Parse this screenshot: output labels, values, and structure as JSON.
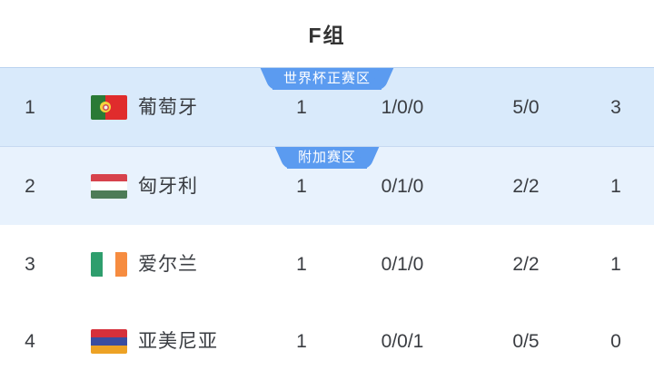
{
  "title": "F组",
  "colors": {
    "badge_blue": "#5b9bf0",
    "row_tint_primary": "#d9eafb",
    "row_tint_secondary": "#e8f2fd",
    "row_plain": "#ffffff",
    "text_dark": "#3a3d42",
    "title_color": "#333333"
  },
  "table": {
    "rows": [
      {
        "rank": "1",
        "team": "葡萄牙",
        "badge": "世界杯正赛区",
        "bg": "#d9eafb",
        "tinted": true,
        "flag": {
          "country": "portugal",
          "direction": "vertical",
          "stripes": [
            {
              "color": "#2a7a36",
              "size": 40
            },
            {
              "color": "#e02c2c",
              "size": 60
            }
          ],
          "emblem": {
            "ring": "#f5d33c",
            "center": "#f2efe9"
          }
        },
        "played": "1",
        "wdl": "1/0/0",
        "goals": "5/0",
        "points": "3"
      },
      {
        "rank": "2",
        "team": "匈牙利",
        "badge": "附加赛区",
        "bg": "#e8f2fd",
        "tinted": true,
        "flag": {
          "country": "hungary",
          "direction": "horizontal",
          "stripes": [
            {
              "color": "#d7424c",
              "size": 33
            },
            {
              "color": "#ffffff",
              "size": 34
            },
            {
              "color": "#4d7c57",
              "size": 33
            }
          ]
        },
        "played": "1",
        "wdl": "0/1/0",
        "goals": "2/2",
        "points": "1"
      },
      {
        "rank": "3",
        "team": "爱尔兰",
        "badge": null,
        "bg": "#ffffff",
        "tinted": false,
        "flag": {
          "country": "ireland",
          "direction": "vertical",
          "stripes": [
            {
              "color": "#2e9e6d",
              "size": 33
            },
            {
              "color": "#ffffff",
              "size": 34
            },
            {
              "color": "#f68c40",
              "size": 33
            }
          ]
        },
        "played": "1",
        "wdl": "0/1/0",
        "goals": "2/2",
        "points": "1"
      },
      {
        "rank": "4",
        "team": "亚美尼亚",
        "badge": null,
        "bg": "#ffffff",
        "tinted": false,
        "flag": {
          "country": "armenia",
          "direction": "horizontal",
          "stripes": [
            {
              "color": "#d6303b",
              "size": 33
            },
            {
              "color": "#3a4da0",
              "size": 34
            },
            {
              "color": "#eda225",
              "size": 33
            }
          ]
        },
        "played": "1",
        "wdl": "0/0/1",
        "goals": "0/5",
        "points": "0"
      }
    ]
  }
}
